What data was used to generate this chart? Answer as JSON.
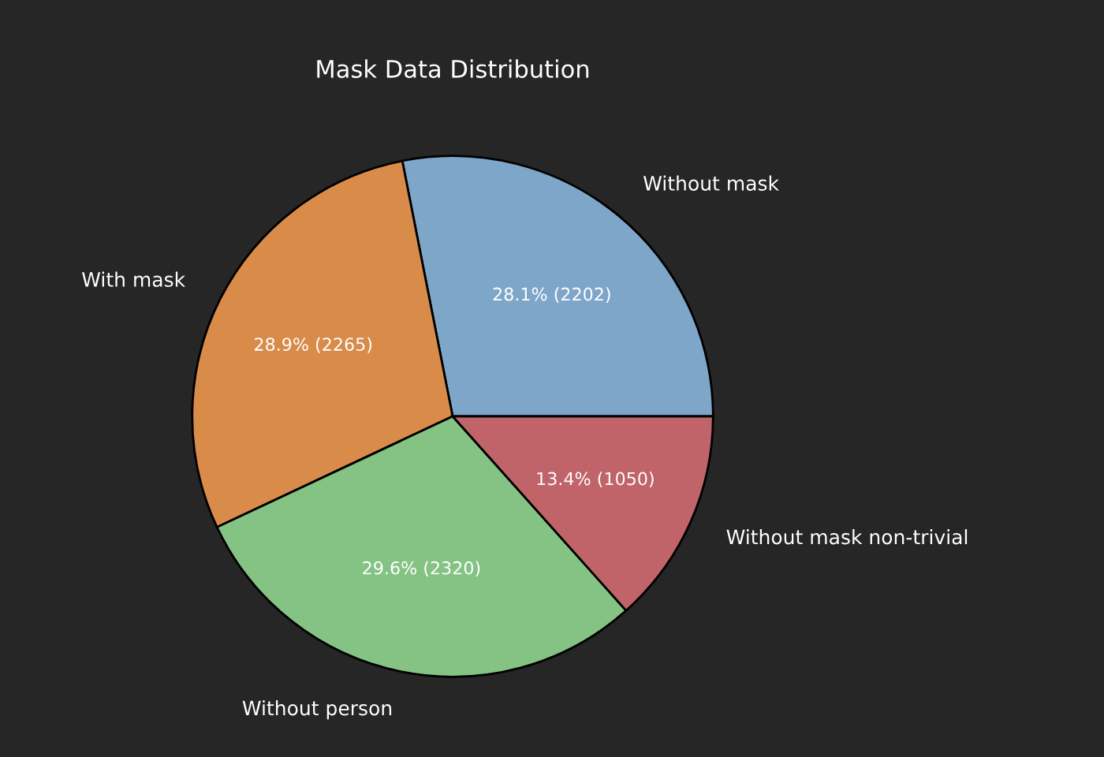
{
  "chart_data": {
    "type": "pie",
    "title": "Mask Data Distribution",
    "categories": [
      "Without mask",
      "With mask",
      "Without person",
      "Without mask non-trivial"
    ],
    "values": [
      2202,
      2265,
      2320,
      1050
    ],
    "value_labels": [
      "28.1% (2202)",
      "28.9% (2265)",
      "29.6% (2320)",
      "13.4% (1050)"
    ],
    "colors": [
      "#7ea6c8",
      "#d98b4a",
      "#84c384",
      "#c0646a"
    ],
    "legend": false
  }
}
